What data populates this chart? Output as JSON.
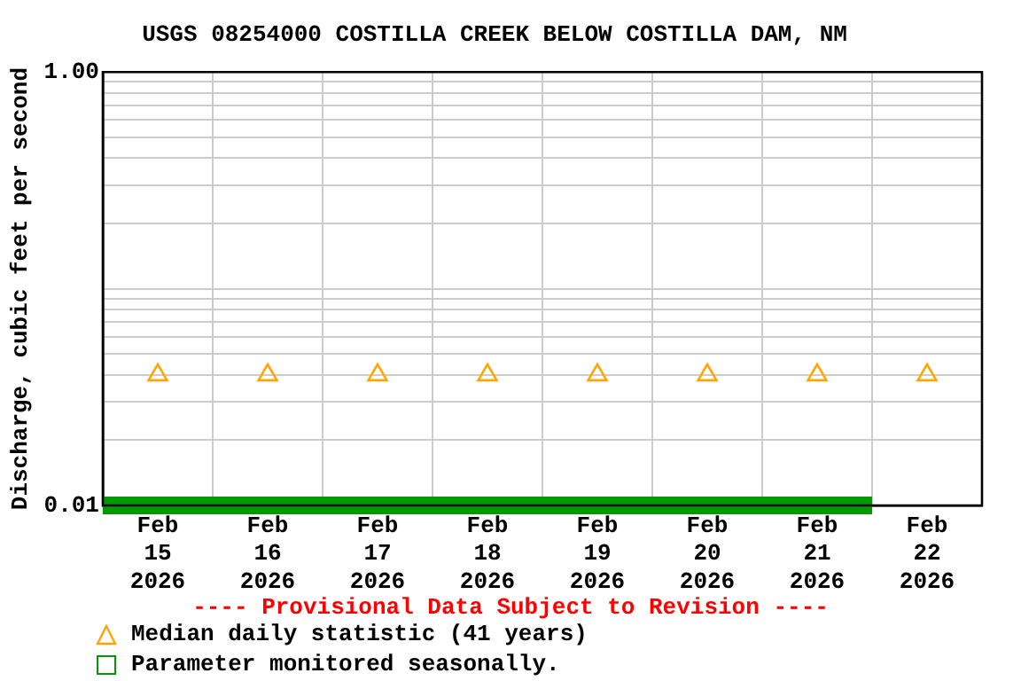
{
  "chart_data": {
    "type": "scatter",
    "title": "USGS 08254000 COSTILLA CREEK BELOW COSTILLA DAM, NM",
    "ylabel": "Discharge, cubic feet per second",
    "x": [
      "2026-02-15T12:00",
      "2026-02-16T12:00",
      "2026-02-17T12:00",
      "2026-02-18T12:00",
      "2026-02-19T12:00",
      "2026-02-20T12:00",
      "2026-02-21T12:00",
      "2026-02-22T12:00"
    ],
    "series": [
      {
        "name": "Median daily statistic (41 years)",
        "color": "#ffa500",
        "values": [
          0.04,
          0.04,
          0.04,
          0.04,
          0.04,
          0.04,
          0.04,
          0.04
        ]
      },
      {
        "name": "Parameter monitored seasonally.",
        "type": "line",
        "marker": "none",
        "color": "#009900",
        "x": [
          "2026-02-15",
          "2026-02-22"
        ],
        "values": [
          0.01,
          0.01
        ]
      }
    ],
    "marker": "triangle",
    "log": "y",
    "grid": true,
    "legend": "bottom",
    "xlim": [
      "2026-02-15",
      "2026-02-23"
    ],
    "xticks": [
      {
        "value": "2026-02-16",
        "label": null
      },
      {
        "value": "2026-02-17",
        "label": null
      },
      {
        "value": "2026-02-18",
        "label": null
      },
      {
        "value": "2026-02-19",
        "label": null
      },
      {
        "value": "2026-02-20",
        "label": null
      },
      {
        "value": "2026-02-21",
        "label": null
      },
      {
        "value": "2026-02-22",
        "label": null
      },
      {
        "value": "2026-02-15T12:00",
        "label": "Feb\n15\n2026"
      },
      {
        "value": "2026-02-16T12:00",
        "label": "Feb\n16\n2026"
      },
      {
        "value": "2026-02-17T12:00",
        "label": "Feb\n17\n2026"
      },
      {
        "value": "2026-02-18T12:00",
        "label": "Feb\n18\n2026"
      },
      {
        "value": "2026-02-19T12:00",
        "label": "Feb\n19\n2026"
      },
      {
        "value": "2026-02-20T12:00",
        "label": "Feb\n20\n2026"
      },
      {
        "value": "2026-02-21T12:00",
        "label": "Feb\n21\n2026"
      },
      {
        "value": "2026-02-22T12:00",
        "label": "Feb\n22\n2026"
      }
    ],
    "ylim": [
      0.01,
      1
    ],
    "yticks": [
      {
        "value": 0.01,
        "label": "0.01"
      },
      {
        "value": 0.02,
        "label": null
      },
      {
        "value": 0.03,
        "label": null
      },
      {
        "value": 0.04,
        "label": null
      },
      {
        "value": 0.05,
        "label": null
      },
      {
        "value": 0.06,
        "label": null
      },
      {
        "value": 0.07,
        "label": null
      },
      {
        "value": 0.08,
        "label": null
      },
      {
        "value": 0.09,
        "label": null
      },
      {
        "value": 0.1,
        "label": null
      },
      {
        "value": 0.2,
        "label": null
      },
      {
        "value": 0.3,
        "label": null
      },
      {
        "value": 0.4,
        "label": null
      },
      {
        "value": 0.5,
        "label": null
      },
      {
        "value": 0.6,
        "label": null
      },
      {
        "value": 0.7,
        "label": null
      },
      {
        "value": 0.8,
        "label": null
      },
      {
        "value": 0.9,
        "label": null
      },
      {
        "value": 1,
        "label": "1.00"
      }
    ],
    "annotations": [
      "---- Provisional Data Subject to Revision ----"
    ]
  }
}
